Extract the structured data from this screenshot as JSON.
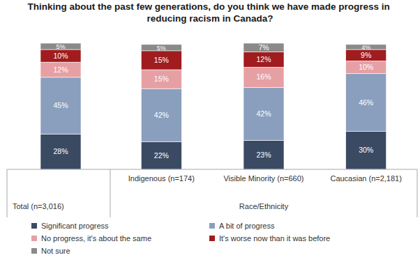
{
  "chart_data": {
    "type": "bar",
    "stacked": true,
    "title": "Thinking about the past few generations, do you think we have made progress in reducing racism in Canada?",
    "categories": [
      "Total (n=3,016)",
      "Indigenous (n=174)",
      "Visible Minority (n=660)",
      "Caucasian (n=2,181)"
    ],
    "xlabel": "Race/Ethnicity",
    "series": [
      {
        "name": "Significant progress",
        "color": "#3b4a63",
        "values": [
          28,
          22,
          23,
          30
        ],
        "value_labels": [
          "28%",
          "22%",
          "23%",
          "30%"
        ]
      },
      {
        "name": "A bit of progress",
        "color": "#8a9fbe",
        "values": [
          45,
          42,
          42,
          46
        ],
        "value_labels": [
          "45%",
          "42%",
          "42%",
          "46%"
        ]
      },
      {
        "name": "No progress, it's about the same",
        "color": "#e6a0a4",
        "values": [
          12,
          15,
          16,
          10
        ],
        "value_labels": [
          "12%",
          "15%",
          "16%",
          "10%"
        ]
      },
      {
        "name": "It's worse now than it was before",
        "color": "#a01c1e",
        "values": [
          10,
          15,
          12,
          9
        ],
        "value_labels": [
          "10%",
          "15%",
          "12%",
          "9%"
        ]
      },
      {
        "name": "Not sure",
        "color": "#8a8a8a",
        "values": [
          5,
          5,
          7,
          4
        ],
        "value_labels": [
          "5%",
          "5%",
          "7%",
          "4%"
        ]
      }
    ],
    "ylim": [
      0,
      100
    ],
    "tick_labels": false,
    "grid": false,
    "legend": "bottom",
    "data_labels": true
  }
}
